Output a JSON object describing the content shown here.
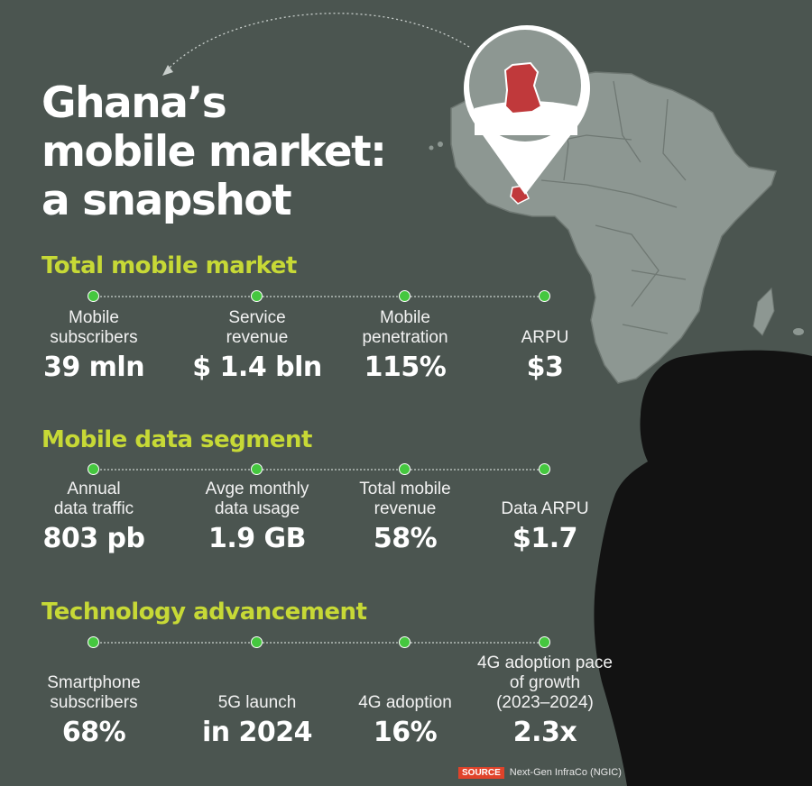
{
  "title": {
    "line1": "Ghana’s",
    "line2": "mobile market:",
    "line3": "a snapshot"
  },
  "colors": {
    "background": "#4b5550",
    "accent": "#c7d936",
    "dot": "#45c73f",
    "map": "#8d9792",
    "highlight": "#c0393b",
    "source_tag": "#e0432a"
  },
  "icons": [
    "location-pin-icon",
    "africa-map",
    "woman-silhouette"
  ],
  "sections": [
    {
      "title": "Total mobile market",
      "stats": [
        {
          "label": "Mobile\nsubscribers",
          "value": "39 mln"
        },
        {
          "label": "Service\nrevenue",
          "value": "$ 1.4 bln"
        },
        {
          "label": "Mobile\npenetration",
          "value": "115%"
        },
        {
          "label": "ARPU",
          "value": "$3"
        }
      ]
    },
    {
      "title": "Mobile data segment",
      "stats": [
        {
          "label": "Annual\ndata traffic",
          "value": "803 pb"
        },
        {
          "label": "Avge monthly\ndata usage",
          "value": "1.9 GB"
        },
        {
          "label": "Total mobile\nrevenue",
          "value": "58%"
        },
        {
          "label": "Data ARPU",
          "value": "$1.7"
        }
      ]
    },
    {
      "title": "Technology advancement",
      "stats": [
        {
          "label": "Smartphone\nsubscribers",
          "value": "68%"
        },
        {
          "label": "5G launch",
          "value": "in 2024"
        },
        {
          "label": "4G adoption",
          "value": "16%"
        },
        {
          "label": "4G adoption pace\nof growth\n(2023–2024)",
          "value": "2.3x"
        }
      ]
    }
  ],
  "source": {
    "tag": "SOURCE",
    "text": "Next-Gen InfraCo (NGIC)"
  }
}
